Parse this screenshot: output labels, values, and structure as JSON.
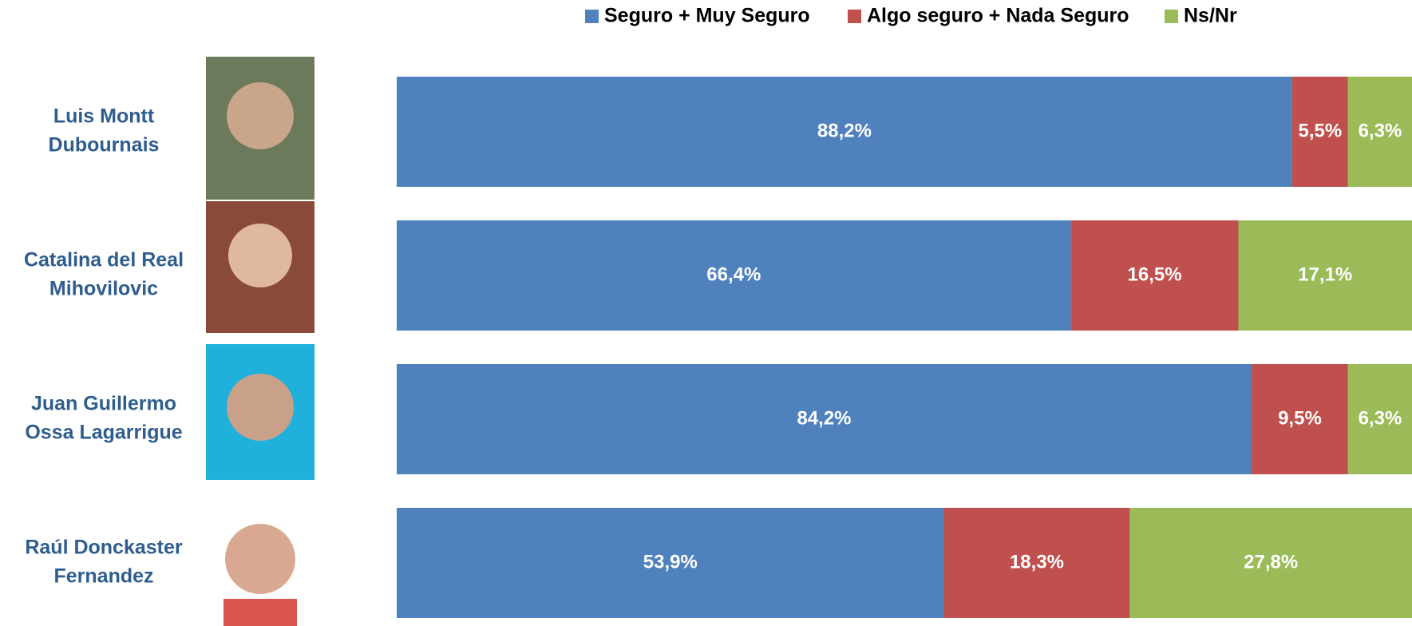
{
  "chart_data": {
    "type": "stacked-bar-horizontal",
    "categories": [
      [
        "Luis Montt",
        "Dubournais"
      ],
      [
        "Catalina del Real",
        "Mihovilovic"
      ],
      [
        "Juan Guillermo",
        "Ossa Lagarrigue"
      ],
      [
        "Raúl  Donckaster",
        "Fernandez"
      ]
    ],
    "series": [
      {
        "name": "Seguro + Muy Seguro",
        "color": "#4f81bd",
        "values": [
          88.2,
          66.4,
          84.2,
          53.9
        ],
        "value_labels": [
          "88,2%",
          "66,4%",
          "84,2%",
          "53,9%"
        ]
      },
      {
        "name": "Algo seguro + Nada Seguro",
        "color": "#c0504d",
        "values": [
          5.5,
          16.5,
          9.5,
          18.3
        ],
        "value_labels": [
          "5,5%",
          "16,5%",
          "9,5%",
          "18,3%"
        ]
      },
      {
        "name": "Ns/Nr",
        "color": "#9bbb59",
        "values": [
          6.3,
          17.1,
          6.3,
          27.8
        ],
        "value_labels": [
          "6,3%",
          "17,1%",
          "6,3%",
          "27,8%"
        ]
      }
    ],
    "xlim": [
      0,
      100
    ],
    "legend": "top"
  }
}
